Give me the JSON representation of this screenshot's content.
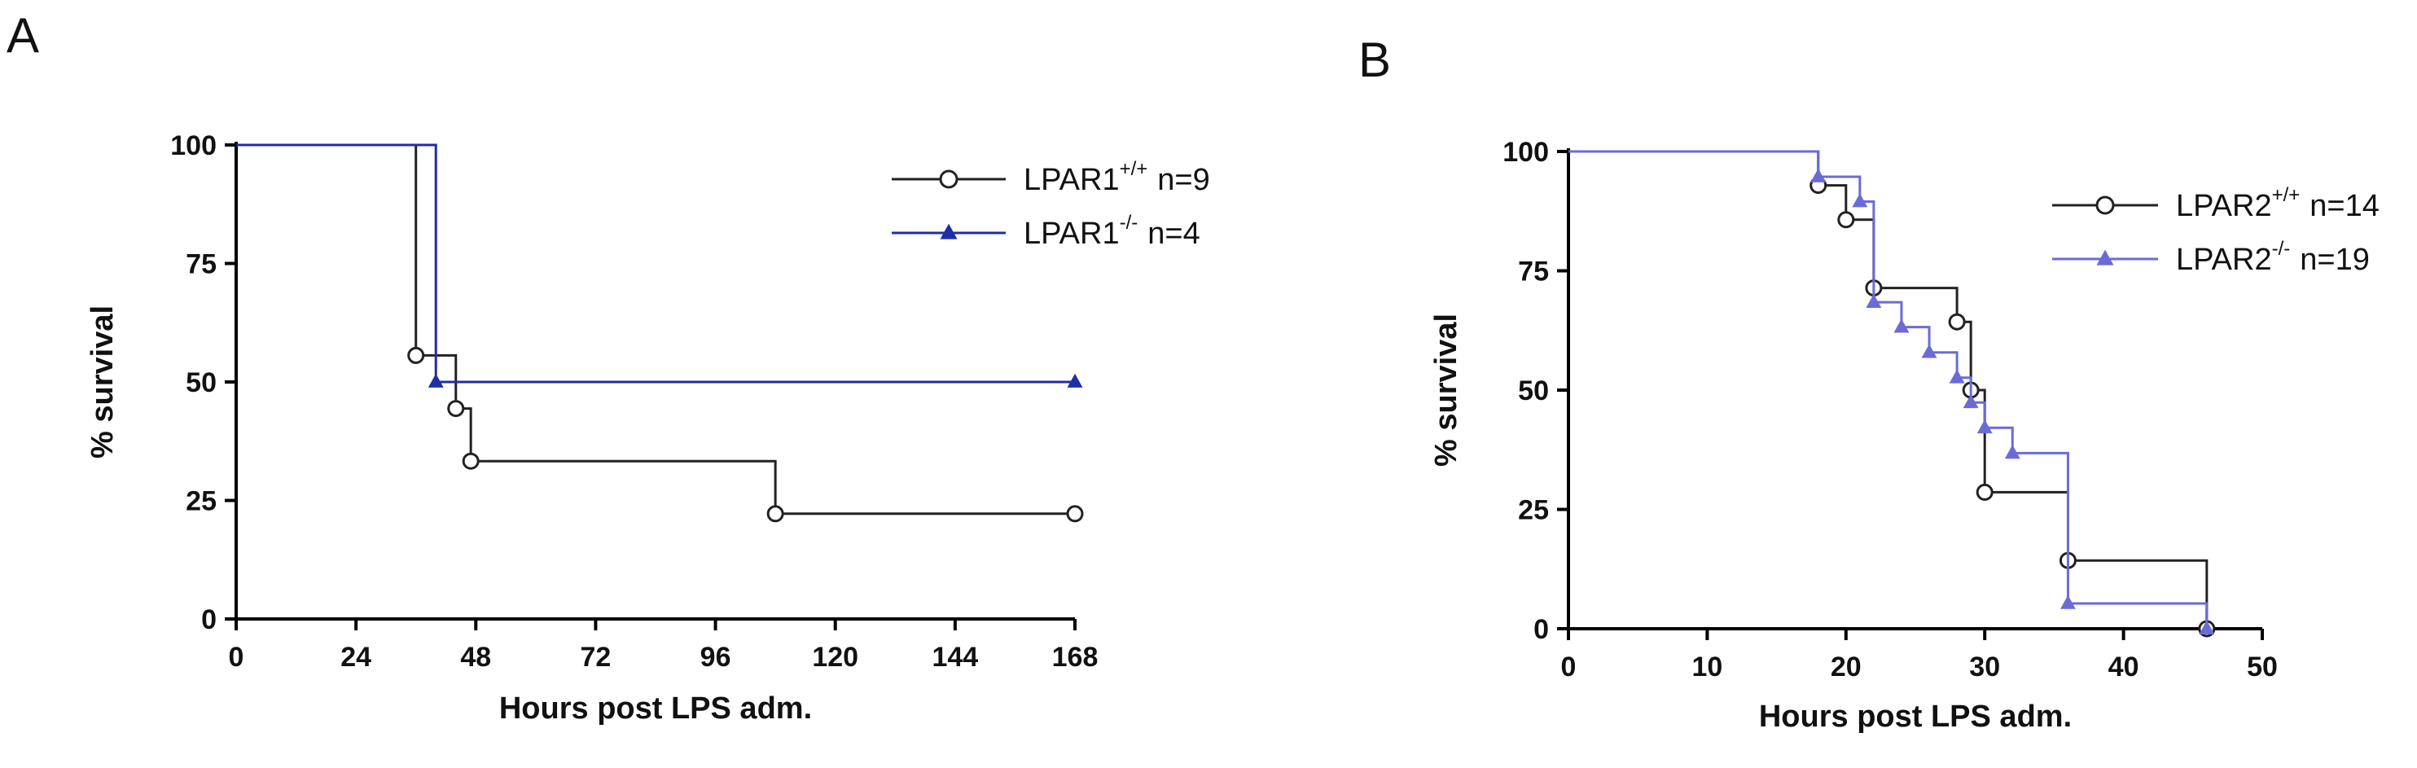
{
  "panels": [
    {
      "letter": "A",
      "chart_data": {
        "type": "line",
        "subtype": "kaplan-meier",
        "xlabel": "Hours post LPS adm.",
        "ylabel": "% survival",
        "xlim": [
          0,
          168
        ],
        "ylim": [
          0,
          100
        ],
        "xticks": [
          0,
          24,
          48,
          72,
          96,
          120,
          144,
          168
        ],
        "yticks": [
          0,
          25,
          50,
          75,
          100
        ],
        "grid": false,
        "legend": "top-right",
        "series": [
          {
            "name_base": "LPAR1",
            "name_sup": "+/+",
            "n_label": "n=9",
            "color": "#222222",
            "marker": "open-circle",
            "steps": [
              [
                0,
                100
              ],
              [
                36,
                55.6
              ],
              [
                44,
                44.4
              ],
              [
                47,
                33.3
              ],
              [
                108,
                22.2
              ],
              [
                168,
                22.2
              ]
            ],
            "marker_points": [
              [
                36,
                55.6
              ],
              [
                44,
                44.4
              ],
              [
                47,
                33.3
              ],
              [
                108,
                22.2
              ],
              [
                168,
                22.2
              ]
            ]
          },
          {
            "name_base": "LPAR1",
            "name_sup": "-/-",
            "n_label": "n=4",
            "color": "#1f2ea6",
            "marker": "filled-triangle",
            "steps": [
              [
                0,
                100
              ],
              [
                40,
                50
              ],
              [
                168,
                50
              ]
            ],
            "marker_points": [
              [
                40,
                50
              ],
              [
                168,
                50
              ]
            ]
          }
        ]
      }
    },
    {
      "letter": "B",
      "chart_data": {
        "type": "line",
        "subtype": "kaplan-meier",
        "xlabel": "Hours post LPS adm.",
        "ylabel": "% survival",
        "xlim": [
          0,
          50
        ],
        "ylim": [
          0,
          100
        ],
        "xticks": [
          0,
          10,
          20,
          30,
          40,
          50
        ],
        "yticks": [
          0,
          25,
          50,
          75,
          100
        ],
        "grid": false,
        "legend": "top-right",
        "series": [
          {
            "name_base": "LPAR2",
            "name_sup": "+/+",
            "n_label": "n=14",
            "color": "#222222",
            "marker": "open-circle",
            "steps": [
              [
                0,
                100
              ],
              [
                18,
                92.9
              ],
              [
                20,
                85.7
              ],
              [
                22,
                71.4
              ],
              [
                28,
                64.3
              ],
              [
                29,
                50
              ],
              [
                30,
                28.6
              ],
              [
                36,
                14.3
              ],
              [
                46,
                0
              ]
            ],
            "marker_points": [
              [
                18,
                92.9
              ],
              [
                20,
                85.7
              ],
              [
                22,
                71.4
              ],
              [
                28,
                64.3
              ],
              [
                29,
                50
              ],
              [
                30,
                28.6
              ],
              [
                36,
                14.3
              ],
              [
                46,
                0
              ]
            ]
          },
          {
            "name_base": "LPAR2",
            "name_sup": "-/-",
            "n_label": "n=19",
            "color": "#6b6bd6",
            "marker": "filled-triangle",
            "steps": [
              [
                0,
                100
              ],
              [
                18,
                94.7
              ],
              [
                21,
                89.5
              ],
              [
                22,
                68.4
              ],
              [
                24,
                63.2
              ],
              [
                26,
                57.9
              ],
              [
                28,
                52.6
              ],
              [
                29,
                47.4
              ],
              [
                30,
                42.1
              ],
              [
                32,
                36.8
              ],
              [
                36,
                5.3
              ],
              [
                46,
                0
              ]
            ],
            "marker_points": [
              [
                18,
                94.7
              ],
              [
                21,
                89.5
              ],
              [
                22,
                68.4
              ],
              [
                24,
                63.2
              ],
              [
                26,
                57.9
              ],
              [
                28,
                52.6
              ],
              [
                29,
                47.4
              ],
              [
                30,
                42.1
              ],
              [
                32,
                36.8
              ],
              [
                36,
                5.3
              ],
              [
                46,
                0
              ]
            ]
          }
        ]
      }
    }
  ]
}
